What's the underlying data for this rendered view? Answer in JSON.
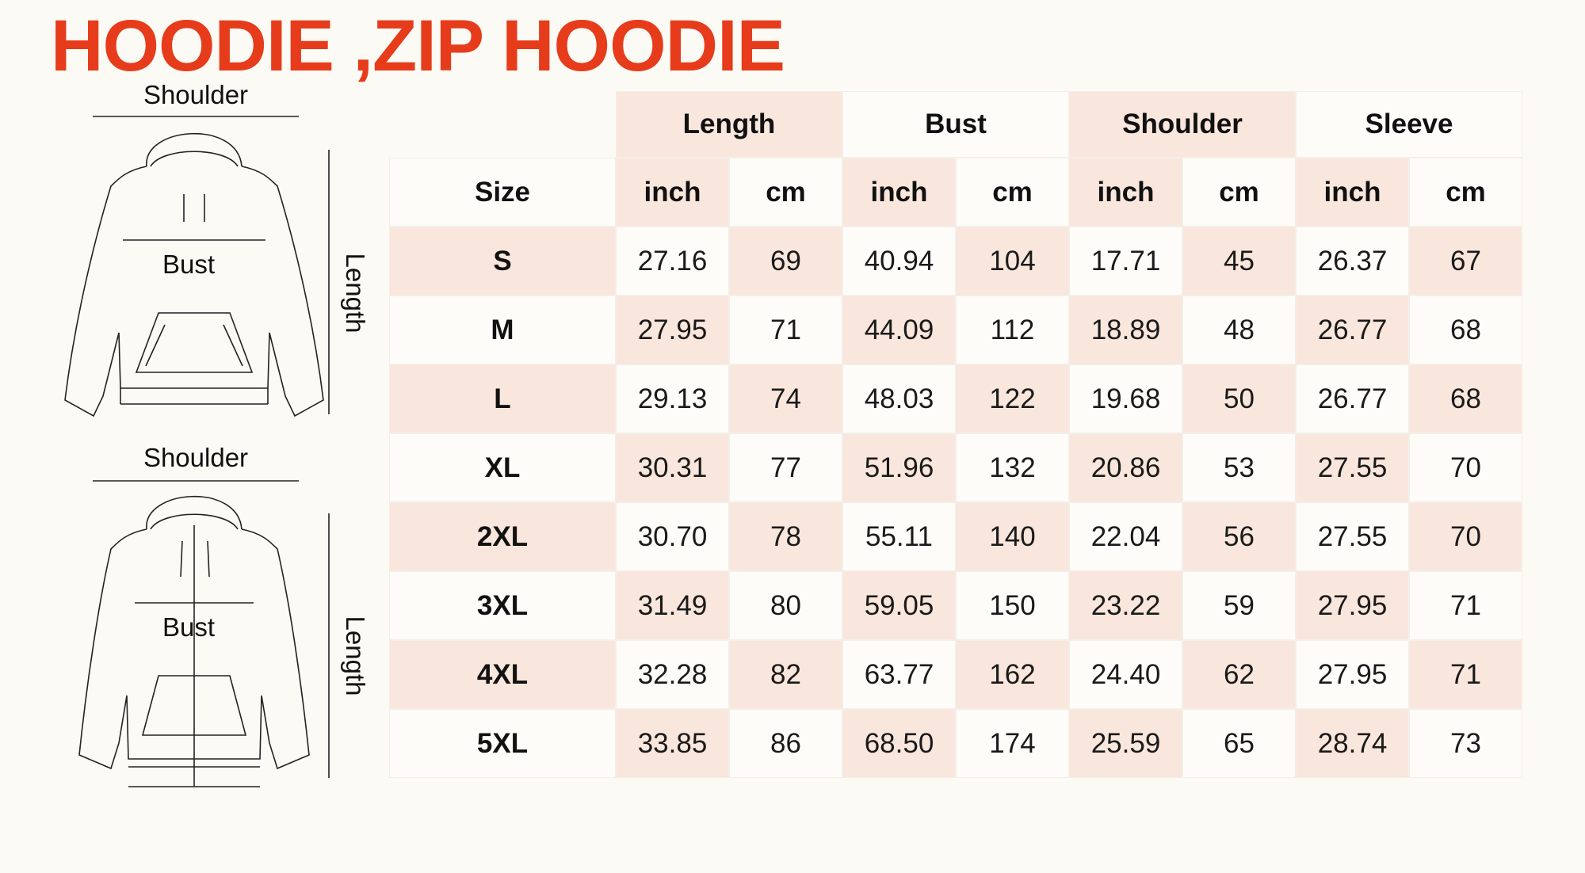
{
  "title": "HOODIE ,ZIP HOODIE",
  "diagrams": [
    {
      "shoulder": "Shoulder",
      "bust": "Bust",
      "length": "Length"
    },
    {
      "shoulder": "Shoulder",
      "bust": "Bust",
      "length": "Length"
    }
  ],
  "table": {
    "size_header": "Size",
    "groups": [
      "Length",
      "Bust",
      "Shoulder",
      "Sleeve"
    ],
    "units": [
      "inch",
      "cm",
      "inch",
      "cm",
      "inch",
      "cm",
      "inch",
      "cm"
    ],
    "rows": [
      [
        "S",
        "27.16",
        "69",
        "40.94",
        "104",
        "17.71",
        "45",
        "26.37",
        "67"
      ],
      [
        "M",
        "27.95",
        "71",
        "44.09",
        "112",
        "18.89",
        "48",
        "26.77",
        "68"
      ],
      [
        "L",
        "29.13",
        "74",
        "48.03",
        "122",
        "19.68",
        "50",
        "26.77",
        "68"
      ],
      [
        "XL",
        "30.31",
        "77",
        "51.96",
        "132",
        "20.86",
        "53",
        "27.55",
        "70"
      ],
      [
        "2XL",
        "30.70",
        "78",
        "55.11",
        "140",
        "22.04",
        "56",
        "27.55",
        "70"
      ],
      [
        "3XL",
        "31.49",
        "80",
        "59.05",
        "150",
        "23.22",
        "59",
        "27.95",
        "71"
      ],
      [
        "4XL",
        "32.28",
        "82",
        "63.77",
        "162",
        "24.40",
        "62",
        "27.95",
        "71"
      ],
      [
        "5XL",
        "33.85",
        "86",
        "68.50",
        "174",
        "25.59",
        "65",
        "28.74",
        "73"
      ]
    ]
  }
}
